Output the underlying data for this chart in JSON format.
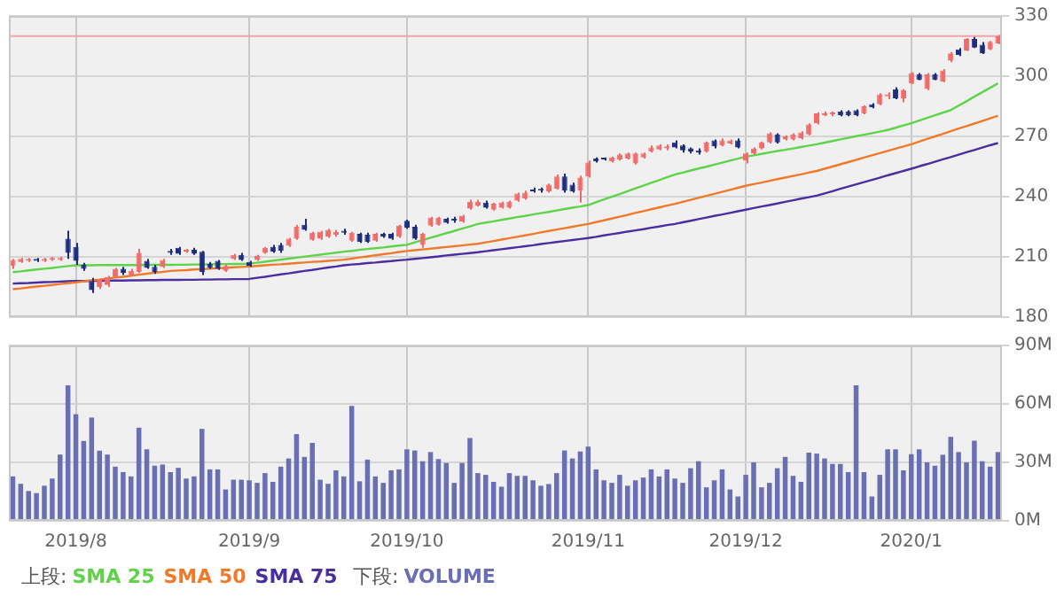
{
  "chart_data": [
    {
      "type": "candlestick",
      "legend": "bottom",
      "legend_title": "上段:",
      "grid": true,
      "tick_labels": "y",
      "marker": "none",
      "categories": [
        null,
        null,
        null,
        null,
        null,
        null,
        null,
        null,
        "2019/8",
        null,
        null,
        null,
        null,
        null,
        null,
        null,
        null,
        null,
        null,
        null,
        null,
        null,
        null,
        null,
        null,
        null,
        null,
        null,
        null,
        null,
        "2019/9",
        null,
        null,
        null,
        null,
        null,
        null,
        null,
        null,
        null,
        null,
        null,
        null,
        null,
        null,
        null,
        null,
        null,
        null,
        null,
        "2019/10",
        null,
        null,
        null,
        null,
        null,
        null,
        null,
        null,
        null,
        null,
        null,
        null,
        null,
        null,
        null,
        null,
        null,
        null,
        null,
        null,
        null,
        null,
        "2019/11",
        null,
        null,
        null,
        null,
        null,
        null,
        null,
        null,
        null,
        null,
        null,
        null,
        null,
        null,
        null,
        null,
        null,
        null,
        null,
        "2019/12",
        null,
        null,
        null,
        null,
        null,
        null,
        null,
        null,
        null,
        null,
        null,
        null,
        null,
        null,
        null,
        null,
        null,
        null,
        null,
        null,
        "2020/1",
        null,
        null,
        null,
        null,
        null,
        null,
        null,
        null,
        null,
        null,
        null
      ],
      "ylim": [
        180,
        330
      ],
      "yticks": [
        180,
        210,
        240,
        270,
        300,
        330
      ],
      "ref_lines": [
        {
          "axis": "y",
          "value": 320,
          "color": "#f4a4a4"
        }
      ],
      "ohlc": [
        [
          205.5,
          209,
          204,
          208.5
        ],
        [
          207.5,
          209.5,
          207,
          209
        ],
        [
          208,
          209.5,
          207.5,
          209
        ],
        [
          209,
          209.5,
          207.5,
          208
        ],
        [
          208,
          209.5,
          207.5,
          209
        ],
        [
          208.5,
          210,
          208,
          209.5
        ],
        [
          208.5,
          210,
          208,
          209.5
        ],
        [
          219,
          223,
          209,
          212
        ],
        [
          215,
          217,
          206,
          208
        ],
        [
          206,
          207,
          203,
          204
        ],
        [
          198,
          199.5,
          192,
          193.5
        ],
        [
          195,
          199,
          194,
          198.5
        ],
        [
          196,
          200.5,
          195,
          200
        ],
        [
          200,
          204.5,
          199.5,
          204
        ],
        [
          204,
          205,
          201,
          202
        ],
        [
          201,
          204,
          200.5,
          203
        ],
        [
          202.5,
          214,
          202,
          212
        ],
        [
          208,
          209,
          204,
          204.5
        ],
        [
          205,
          206,
          201.5,
          202.5
        ],
        [
          205,
          209,
          204.5,
          208.5
        ],
        [
          213,
          214,
          211,
          212
        ],
        [
          214.5,
          215,
          211,
          211.5
        ],
        [
          212.5,
          214,
          212,
          213.5
        ],
        [
          213.5,
          214.5,
          211,
          211.5
        ],
        [
          212.5,
          213,
          201,
          202.5
        ],
        [
          206.5,
          207.5,
          204,
          204.5
        ],
        [
          208,
          208.5,
          203.5,
          204
        ],
        [
          203,
          206,
          202.5,
          205.5
        ],
        [
          209,
          211.5,
          208.5,
          211
        ],
        [
          211,
          212,
          208,
          208.5
        ],
        [
          207.5,
          208,
          205,
          205.5
        ],
        [
          208.5,
          211,
          208,
          210.5
        ],
        [
          212,
          215,
          211.5,
          214.5
        ],
        [
          215,
          216,
          212,
          212.5
        ],
        [
          216,
          217,
          212,
          213
        ],
        [
          215.5,
          219.5,
          215,
          219
        ],
        [
          219,
          226,
          218.5,
          225
        ],
        [
          226,
          229,
          223,
          223.5
        ],
        [
          218.5,
          222.5,
          218,
          222
        ],
        [
          219,
          223,
          218.5,
          222.5
        ],
        [
          220,
          224,
          219.5,
          223.5
        ],
        [
          221,
          223.5,
          220,
          222.5
        ],
        [
          223,
          224,
          221,
          222
        ],
        [
          218,
          222.5,
          217.5,
          222
        ],
        [
          221.5,
          222,
          217,
          217.5
        ],
        [
          221,
          222,
          217,
          217.5
        ],
        [
          218,
          222,
          217.5,
          221.5
        ],
        [
          221.5,
          222,
          219.5,
          220
        ],
        [
          221.5,
          222,
          218.5,
          219
        ],
        [
          220,
          226,
          219.5,
          225.5
        ],
        [
          228,
          228.5,
          224,
          224.5
        ],
        [
          225,
          226,
          218.5,
          219
        ],
        [
          216,
          222,
          214.5,
          221.5
        ],
        [
          225.5,
          230,
          225,
          229.5
        ],
        [
          226,
          230,
          225.5,
          229.5
        ],
        [
          229,
          229.5,
          226.5,
          227
        ],
        [
          229,
          230,
          227,
          228
        ],
        [
          227.5,
          231,
          227,
          230.5
        ],
        [
          234,
          238.5,
          233.5,
          237.5
        ],
        [
          235.5,
          238.5,
          235,
          237.5
        ],
        [
          237,
          238,
          234,
          234.5
        ],
        [
          233.5,
          237,
          233,
          236.5
        ],
        [
          234.5,
          237.5,
          234,
          237
        ],
        [
          234.5,
          238,
          234,
          237.5
        ],
        [
          238,
          242,
          237.5,
          241.5
        ],
        [
          239,
          243,
          238.5,
          242
        ],
        [
          243.5,
          244.5,
          242,
          242.5
        ],
        [
          243.5,
          244.5,
          242,
          243
        ],
        [
          242.5,
          246.5,
          242,
          246
        ],
        [
          244,
          251,
          243.5,
          250
        ],
        [
          250,
          251.5,
          242,
          243
        ],
        [
          246,
          247,
          242,
          242.5
        ],
        [
          243,
          250.5,
          237,
          249.5
        ],
        [
          250,
          258,
          249.5,
          257
        ],
        [
          259,
          259.5,
          257,
          257.5
        ],
        [
          259,
          259.5,
          258,
          258.5
        ],
        [
          257.5,
          260,
          257,
          259.5
        ],
        [
          258.5,
          261.5,
          258,
          261
        ],
        [
          259,
          262,
          258.5,
          261.5
        ],
        [
          256.5,
          262,
          256,
          261.5
        ],
        [
          259.5,
          262,
          259,
          261.5
        ],
        [
          262.5,
          265.5,
          262,
          264.5
        ],
        [
          263.5,
          266,
          263,
          265.5
        ],
        [
          264,
          266,
          263,
          265
        ],
        [
          267,
          268,
          264,
          264.5
        ],
        [
          265.5,
          266,
          262,
          263
        ],
        [
          264,
          264.5,
          261.5,
          262.5
        ],
        [
          263,
          264,
          261,
          262
        ],
        [
          262.5,
          267.5,
          262,
          267
        ],
        [
          268,
          268.5,
          264,
          265
        ],
        [
          265.5,
          269,
          265,
          268
        ],
        [
          266.5,
          268.5,
          266,
          268
        ],
        [
          268,
          269,
          264,
          264.5
        ],
        [
          258,
          262,
          256.5,
          261.5
        ],
        [
          261.5,
          264.5,
          261,
          264
        ],
        [
          264,
          267.5,
          263.5,
          267
        ],
        [
          267,
          272,
          266.5,
          271.5
        ],
        [
          271,
          271.5,
          266.5,
          267
        ],
        [
          268.5,
          270.5,
          268,
          270
        ],
        [
          268.5,
          271.5,
          268,
          271
        ],
        [
          269,
          272.5,
          268.5,
          272
        ],
        [
          271,
          276.5,
          270.5,
          276
        ],
        [
          276.5,
          282,
          276,
          281.5
        ],
        [
          280.5,
          282.5,
          280,
          281.5
        ],
        [
          281,
          282.5,
          280,
          281.5
        ],
        [
          282.5,
          283,
          280,
          280.5
        ],
        [
          282.5,
          283,
          280,
          280.5
        ],
        [
          283,
          283.5,
          280,
          280.5
        ],
        [
          281.5,
          285.5,
          281,
          285
        ],
        [
          286,
          286.5,
          284,
          284.5
        ],
        [
          286,
          291.5,
          285.5,
          291
        ],
        [
          290,
          292,
          288.5,
          291
        ],
        [
          293.5,
          294.5,
          288.5,
          289
        ],
        [
          289,
          293.5,
          287,
          293
        ],
        [
          296.4,
          302,
          296,
          301.5
        ],
        [
          301,
          301.5,
          298,
          298.1
        ],
        [
          293.6,
          301.5,
          293,
          300.9
        ],
        [
          301,
          301.5,
          298,
          298.1
        ],
        [
          297.2,
          303.5,
          297,
          302.9
        ],
        [
          307.7,
          312,
          307,
          311.4
        ],
        [
          313.4,
          314,
          310,
          310.6
        ],
        [
          312.8,
          319,
          312.5,
          318.5
        ],
        [
          318.5,
          319.5,
          314,
          314.2
        ],
        [
          315.7,
          317,
          311,
          311.4
        ],
        [
          313.4,
          317.5,
          313,
          317.1
        ],
        [
          316.2,
          320.5,
          316,
          319.9
        ]
      ],
      "colors": [
        "#f26b6b",
        "#f26b6b",
        "#f26b6b",
        "#1f2d7f",
        "#f26b6b",
        "#f26b6b",
        "#f26b6b",
        "#1f2d7f",
        "#1f2d7f",
        "#1f2d7f",
        "#1f2d7f",
        "#f26b6b",
        "#f26b6b",
        "#f26b6b",
        "#1f2d7f",
        "#f26b6b",
        "#f26b6b",
        "#1f2d7f",
        "#1f2d7f",
        "#f26b6b",
        "#1f2d7f",
        "#1f2d7f",
        "#f26b6b",
        "#1f2d7f",
        "#1f2d7f",
        "#1f2d7f",
        "#1f2d7f",
        "#f26b6b",
        "#f26b6b",
        "#1f2d7f",
        "#1f2d7f",
        "#f26b6b",
        "#f26b6b",
        "#1f2d7f",
        "#1f2d7f",
        "#f26b6b",
        "#f26b6b",
        "#1f2d7f",
        "#f26b6b",
        "#f26b6b",
        "#f26b6b",
        "#f26b6b",
        "#1f2d7f",
        "#f26b6b",
        "#1f2d7f",
        "#1f2d7f",
        "#f26b6b",
        "#1f2d7f",
        "#1f2d7f",
        "#f26b6b",
        "#1f2d7f",
        "#1f2d7f",
        "#f26b6b",
        "#f26b6b",
        "#f26b6b",
        "#1f2d7f",
        "#1f2d7f",
        "#f26b6b",
        "#f26b6b",
        "#f26b6b",
        "#1f2d7f",
        "#f26b6b",
        "#f26b6b",
        "#f26b6b",
        "#f26b6b",
        "#f26b6b",
        "#1f2d7f",
        "#1f2d7f",
        "#f26b6b",
        "#f26b6b",
        "#1f2d7f",
        "#1f2d7f",
        "#f26b6b",
        "#f26b6b",
        "#1f2d7f",
        "#1f2d7f",
        "#f26b6b",
        "#f26b6b",
        "#f26b6b",
        "#f26b6b",
        "#f26b6b",
        "#f26b6b",
        "#f26b6b",
        "#f26b6b",
        "#1f2d7f",
        "#1f2d7f",
        "#1f2d7f",
        "#1f2d7f",
        "#f26b6b",
        "#1f2d7f",
        "#f26b6b",
        "#f26b6b",
        "#1f2d7f",
        "#f26b6b",
        "#f26b6b",
        "#f26b6b",
        "#f26b6b",
        "#1f2d7f",
        "#f26b6b",
        "#f26b6b",
        "#f26b6b",
        "#f26b6b",
        "#f26b6b",
        "#f26b6b",
        "#f26b6b",
        "#1f2d7f",
        "#1f2d7f",
        "#1f2d7f",
        "#f26b6b",
        "#1f2d7f",
        "#f26b6b",
        "#f26b6b",
        "#1f2d7f",
        "#f26b6b",
        "#f26b6b",
        "#1f2d7f",
        "#f26b6b",
        "#1f2d7f",
        "#f26b6b",
        "#f26b6b",
        "#1f2d7f",
        "#f26b6b",
        "#1f2d7f",
        "#1f2d7f",
        "#f26b6b",
        "#f26b6b"
      ],
      "series": [
        {
          "name": "SMA 25",
          "type": "line",
          "color": "#5fd34a",
          "values": [
            202.4,
            202.8,
            203.3,
            203.7,
            204.1,
            204.5,
            205,
            205.4,
            205.8,
            205.8,
            205.8,
            205.9,
            205.9,
            205.9,
            205.9,
            205.9,
            205.9,
            206,
            206,
            206,
            206,
            206.1,
            206.1,
            206.2,
            206.2,
            206.3,
            206.4,
            206.4,
            206.5,
            206.5,
            206.6,
            207.1,
            207.6,
            208.1,
            208.6,
            209.1,
            209.6,
            210.1,
            210.6,
            211.1,
            211.6,
            212.1,
            212.6,
            213,
            213.5,
            213.9,
            214.3,
            214.7,
            215.2,
            215.6,
            216,
            217.2,
            218.3,
            219.5,
            220.6,
            221.8,
            222.9,
            224.1,
            225.2,
            226.4,
            227.1,
            227.7,
            228.4,
            229.1,
            229.8,
            230.4,
            231.1,
            231.8,
            232.4,
            233.1,
            233.8,
            234.5,
            235.1,
            235.8,
            237.2,
            238.6,
            239.9,
            241.3,
            242.7,
            244.1,
            245.5,
            246.9,
            248.2,
            249.6,
            251,
            252,
            253,
            254,
            254.9,
            255.9,
            256.9,
            257.9,
            258.9,
            259.9,
            260.6,
            261.3,
            262,
            262.7,
            263.3,
            264,
            264.7,
            265.4,
            266.1,
            266.9,
            267.7,
            268.5,
            269.3,
            270.1,
            270.8,
            271.6,
            272.4,
            273.2,
            274.3,
            275.5,
            276.6,
            277.9,
            279.2,
            280.5,
            281.8,
            283.1,
            285.3,
            287.5,
            289.8,
            292,
            294.2,
            296.4
          ]
        },
        {
          "name": "SMA 50",
          "type": "line",
          "color": "#f07a2a",
          "values": [
            193.9,
            194.3,
            194.8,
            195.2,
            195.6,
            196,
            196.5,
            196.9,
            197.3,
            197.8,
            198.3,
            198.7,
            199.2,
            199.7,
            200.1,
            200.6,
            201.1,
            201.6,
            202.1,
            202.5,
            203,
            203.2,
            203.4,
            203.7,
            203.9,
            204.1,
            204.3,
            204.5,
            204.8,
            205,
            205.2,
            205.5,
            205.8,
            206.1,
            206.3,
            206.6,
            206.9,
            207.2,
            207.5,
            207.7,
            208,
            208.3,
            208.6,
            209.1,
            209.7,
            210.2,
            210.8,
            211.3,
            211.8,
            212.4,
            212.9,
            213.3,
            213.7,
            214.1,
            214.5,
            214.9,
            215.3,
            215.7,
            216.1,
            216.5,
            217.2,
            217.9,
            218.6,
            219.3,
            220,
            220.7,
            221.4,
            222.2,
            222.9,
            223.6,
            224.3,
            225,
            225.7,
            226.4,
            227.3,
            228.2,
            229.1,
            230,
            230.9,
            231.9,
            232.8,
            233.7,
            234.6,
            235.5,
            236.4,
            237.4,
            238.4,
            239.4,
            240.4,
            241.4,
            242.4,
            243.4,
            244.4,
            245.4,
            246.2,
            247,
            247.9,
            248.7,
            249.5,
            250.3,
            251.1,
            252,
            252.8,
            253.9,
            255,
            256.1,
            257.2,
            258.3,
            259.5,
            260.6,
            261.7,
            262.8,
            263.9,
            265,
            266.1,
            267.4,
            268.7,
            270,
            271.3,
            272.6,
            273.9,
            275.1,
            276.4,
            277.7,
            279,
            280.3
          ]
        },
        {
          "name": "SMA 75",
          "type": "line",
          "color": "#4a2ea0",
          "values": [
            196.7,
            196.9,
            197,
            197.2,
            197.4,
            197.5,
            197.7,
            197.9,
            198,
            198,
            198.1,
            198.1,
            198.2,
            198.2,
            198.2,
            198.3,
            198.3,
            198.4,
            198.4,
            198.5,
            198.5,
            198.5,
            198.6,
            198.6,
            198.7,
            198.7,
            198.8,
            198.8,
            198.9,
            198.9,
            199,
            199.6,
            200.1,
            200.7,
            201.3,
            201.8,
            202.4,
            203,
            203.5,
            204.1,
            204.7,
            205.2,
            205.8,
            206.2,
            206.5,
            206.9,
            207.2,
            207.6,
            207.9,
            208.3,
            208.6,
            209,
            209.4,
            209.8,
            210.2,
            210.7,
            211.1,
            211.5,
            211.9,
            212.3,
            212.8,
            213.3,
            213.8,
            214.3,
            214.8,
            215.3,
            215.8,
            216.4,
            216.9,
            217.4,
            217.9,
            218.4,
            218.9,
            219.4,
            220,
            220.7,
            221.3,
            221.9,
            222.6,
            223.2,
            223.8,
            224.5,
            225.1,
            225.8,
            226.4,
            227.2,
            228,
            228.8,
            229.6,
            230.4,
            231.1,
            231.9,
            232.7,
            233.5,
            234.3,
            235.1,
            235.8,
            236.6,
            237.4,
            238.2,
            239,
            239.7,
            240.5,
            241.6,
            242.7,
            243.9,
            245,
            246.1,
            247.2,
            248.3,
            249.4,
            250.6,
            251.7,
            252.8,
            253.9,
            255.1,
            256.2,
            257.4,
            258.6,
            259.7,
            260.9,
            262.1,
            263.2,
            264.4,
            265.6,
            266.7
          ]
        }
      ]
    },
    {
      "type": "bar",
      "legend": "bottom",
      "legend_title": "下段:",
      "grid": true,
      "categories": [
        null,
        null,
        null,
        null,
        null,
        null,
        null,
        null,
        "2019/8",
        null,
        null,
        null,
        null,
        null,
        null,
        null,
        null,
        null,
        null,
        null,
        null,
        null,
        null,
        null,
        null,
        null,
        null,
        null,
        null,
        null,
        "2019/9",
        null,
        null,
        null,
        null,
        null,
        null,
        null,
        null,
        null,
        null,
        null,
        null,
        null,
        null,
        null,
        null,
        null,
        null,
        null,
        "2019/10",
        null,
        null,
        null,
        null,
        null,
        null,
        null,
        null,
        null,
        null,
        null,
        null,
        null,
        null,
        null,
        null,
        null,
        null,
        null,
        null,
        null,
        null,
        "2019/11",
        null,
        null,
        null,
        null,
        null,
        null,
        null,
        null,
        null,
        null,
        null,
        null,
        null,
        null,
        null,
        null,
        null,
        null,
        null,
        "2019/12",
        null,
        null,
        null,
        null,
        null,
        null,
        null,
        null,
        null,
        null,
        null,
        null,
        null,
        null,
        null,
        null,
        null,
        null,
        null,
        null,
        "2020/1",
        null,
        null,
        null,
        null,
        null,
        null,
        null,
        null,
        null,
        null,
        null
      ],
      "ylim": [
        0,
        90
      ],
      "yticks": [
        {
          "value": 0,
          "label": "0M"
        },
        {
          "value": 30,
          "label": "30M"
        },
        {
          "value": 60,
          "label": "60M"
        },
        {
          "value": 90,
          "label": "90M"
        }
      ],
      "series": [
        {
          "name": "VOLUME",
          "color": "#6a6fb3",
          "values": [
            22.8,
            19,
            15.3,
            14.2,
            18,
            21.7,
            34,
            69.5,
            54.7,
            41,
            53,
            36,
            34,
            27.8,
            25,
            22.8,
            47.8,
            36.7,
            28.3,
            28.9,
            25,
            27.2,
            21.7,
            22.8,
            47.2,
            26.4,
            26.4,
            16.1,
            21.1,
            21.1,
            20.8,
            19.5,
            24.5,
            20,
            27.8,
            32,
            44.5,
            32.8,
            40,
            21.1,
            19,
            25.9,
            22.8,
            59,
            20.3,
            31.4,
            22.8,
            19.5,
            25.9,
            26.4,
            36.7,
            36.1,
            30.6,
            35.3,
            31.7,
            29.7,
            19.5,
            29.7,
            42.5,
            24.5,
            23.6,
            20,
            17.5,
            24.5,
            23.1,
            23.1,
            20.8,
            18,
            18.9,
            24.5,
            36.1,
            32,
            35.6,
            38.1,
            26.4,
            20.8,
            19.5,
            23.6,
            18,
            20.8,
            22.2,
            26.4,
            22.8,
            26.4,
            21.7,
            19.5,
            27,
            30.6,
            17.2,
            20.8,
            26.4,
            16.1,
            12.5,
            23.6,
            30,
            17.2,
            19.5,
            27,
            32.8,
            23.1,
            20,
            35,
            34.5,
            32,
            29.2,
            29.2,
            25,
            69.5,
            25,
            12.5,
            23.6,
            36.7,
            36.7,
            25.9,
            34.2,
            36.7,
            30,
            28.3,
            33.9,
            43.1,
            35.3,
            30,
            41.1,
            30.6,
            27.8,
            35.3
          ]
        }
      ]
    }
  ]
}
